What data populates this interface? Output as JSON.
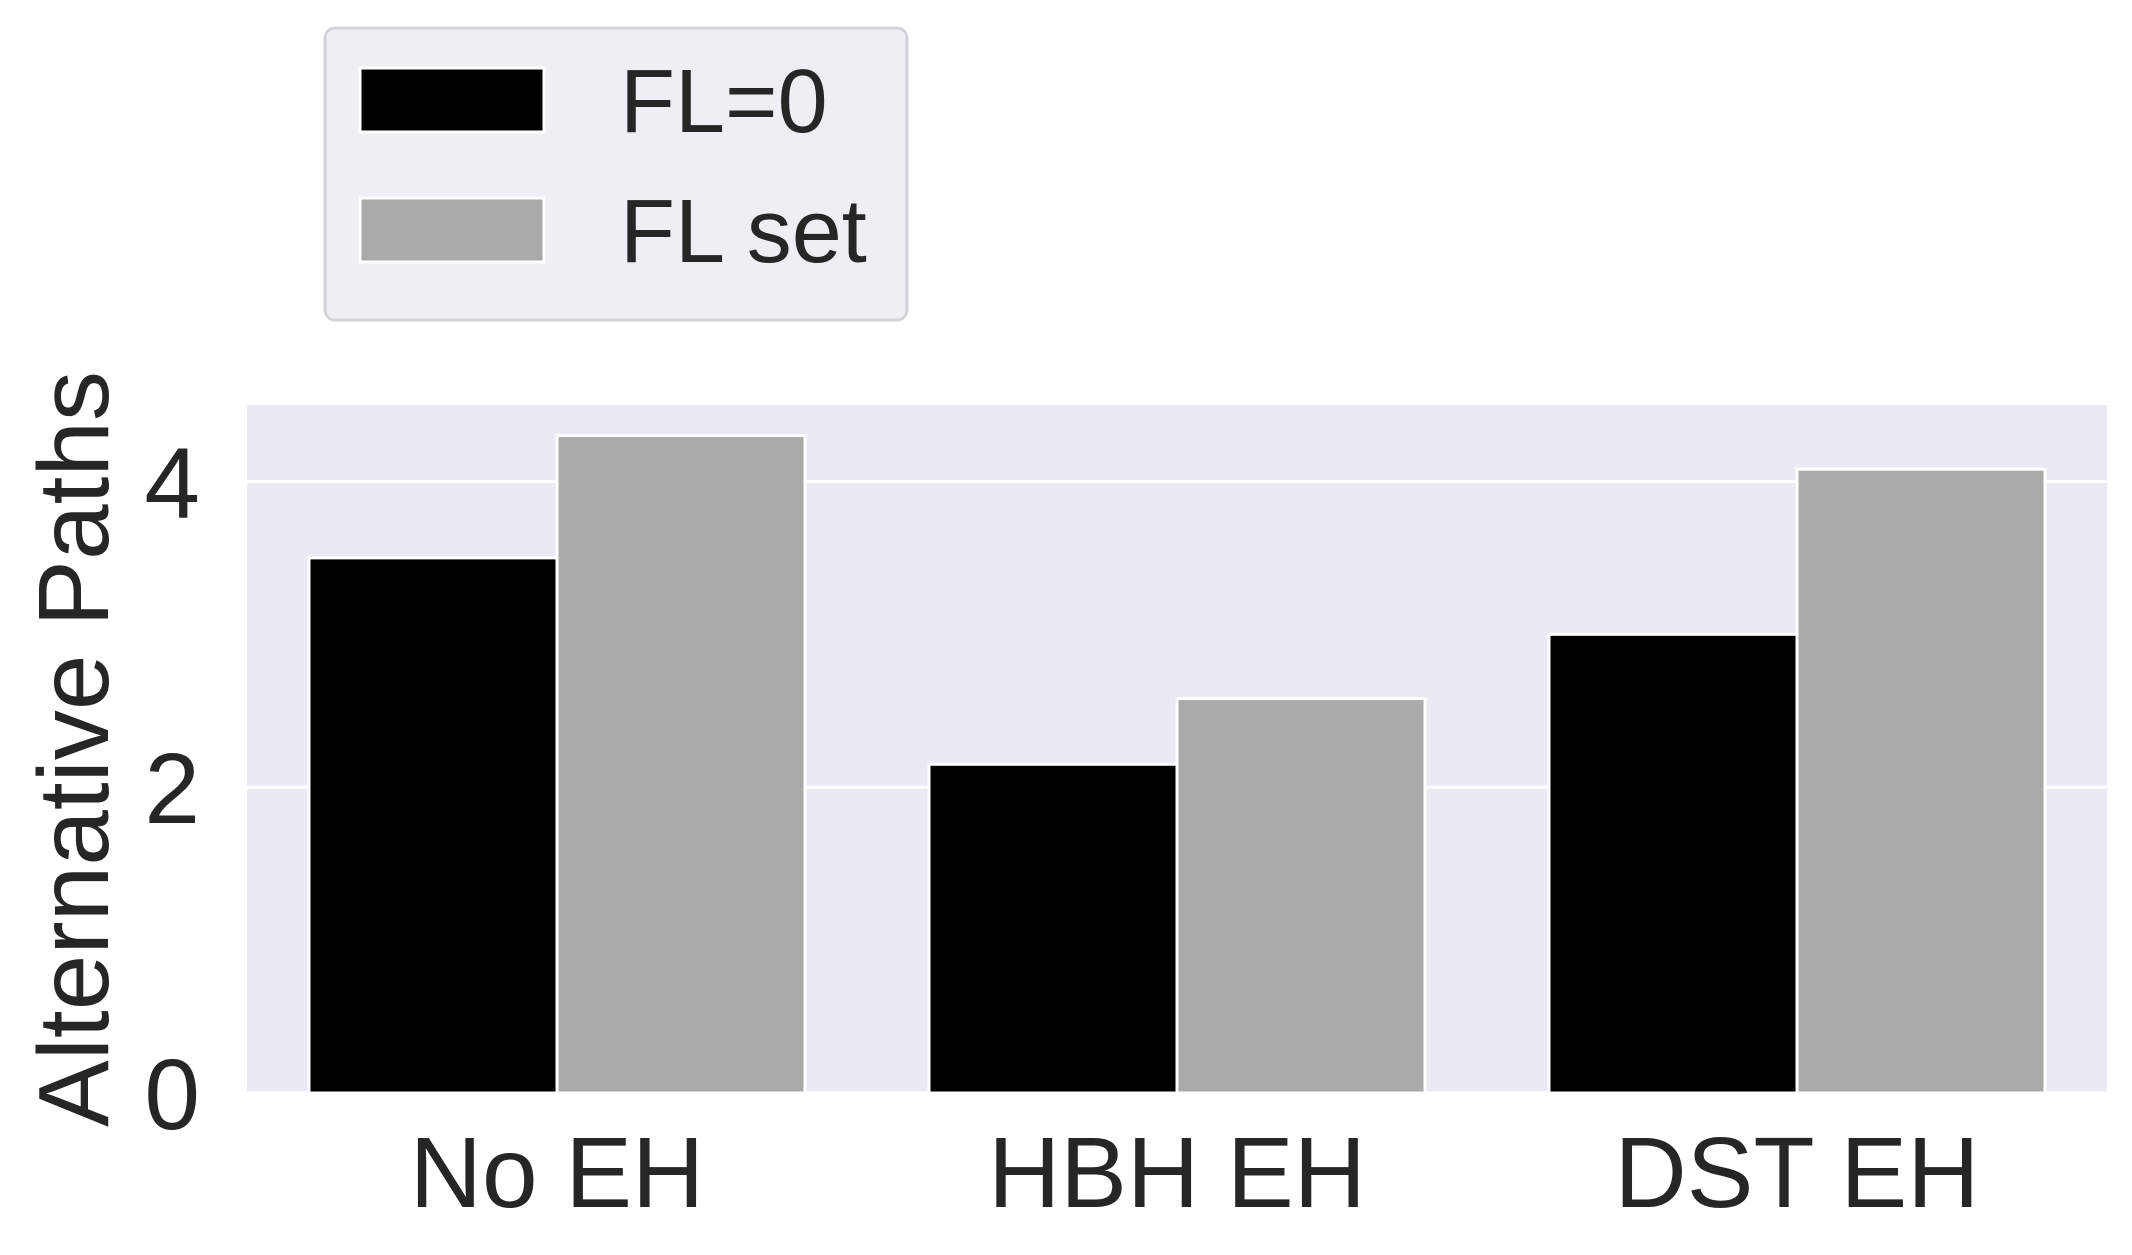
{
  "chart_data": {
    "type": "bar",
    "categories": [
      "No EH",
      "HBH EH",
      "DST EH"
    ],
    "series": [
      {
        "name": "FL=0",
        "color": "#000000",
        "values": [
          3.5,
          2.15,
          3.0
        ]
      },
      {
        "name": "FL set",
        "color": "#aaaaaa",
        "values": [
          4.3,
          2.58,
          4.08
        ]
      }
    ],
    "title": "",
    "xlabel": "",
    "ylabel": "Alternative Paths",
    "ylim": [
      0,
      4.5
    ],
    "yticks": [
      0,
      2,
      4
    ],
    "ytick_labels": [
      "0",
      "2",
      "4"
    ],
    "grid": true,
    "legend_position": "above plot, left",
    "colors": {
      "plot_background": "#eaeaf2",
      "grid": "#ffffff",
      "legend_background": "#eeeef3",
      "legend_border": "#d4d4d8",
      "text": "#262626"
    }
  }
}
